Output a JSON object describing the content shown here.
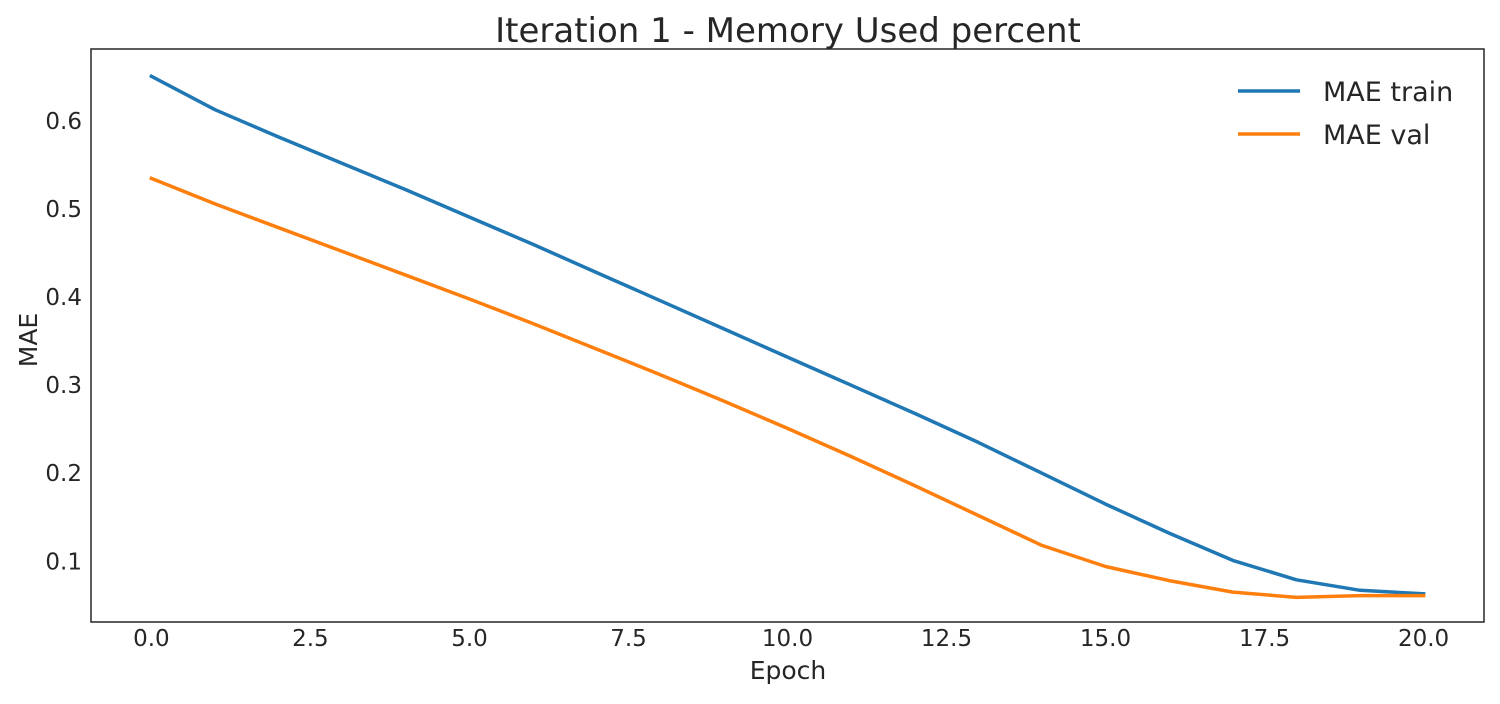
{
  "chart_data": {
    "type": "line",
    "title": "Iteration 1 - Memory Used percent",
    "xlabel": "Epoch",
    "ylabel": "MAE",
    "xlim": [
      -0.95,
      20.95
    ],
    "ylim": [
      0.031,
      0.682
    ],
    "xticks": [
      0.0,
      2.5,
      5.0,
      7.5,
      10.0,
      12.5,
      15.0,
      17.5,
      20.0
    ],
    "xtick_labels": [
      "0.0",
      "2.5",
      "5.0",
      "7.5",
      "10.0",
      "12.5",
      "15.0",
      "17.5",
      "20.0"
    ],
    "yticks": [
      0.1,
      0.2,
      0.3,
      0.4,
      0.5,
      0.6
    ],
    "ytick_labels": [
      "0.1",
      "0.2",
      "0.3",
      "0.4",
      "0.5",
      "0.6"
    ],
    "grid": false,
    "legend_position": "top-right",
    "x": [
      0,
      1,
      2,
      3,
      4,
      5,
      6,
      7,
      8,
      9,
      10,
      11,
      12,
      13,
      14,
      15,
      16,
      17,
      18,
      19,
      20
    ],
    "series": [
      {
        "name": "MAE train",
        "color": "#1f77b4",
        "values": [
          0.651,
          0.613,
          0.582,
          0.552,
          0.522,
          0.491,
          0.46,
          0.428,
          0.396,
          0.364,
          0.332,
          0.3,
          0.268,
          0.235,
          0.2,
          0.165,
          0.132,
          0.101,
          0.079,
          0.067,
          0.063
        ]
      },
      {
        "name": "MAE val",
        "color": "#ff7f0e",
        "values": [
          0.535,
          0.506,
          0.479,
          0.452,
          0.425,
          0.398,
          0.37,
          0.341,
          0.312,
          0.282,
          0.251,
          0.219,
          0.186,
          0.152,
          0.118,
          0.094,
          0.078,
          0.065,
          0.059,
          0.061,
          0.061
        ]
      }
    ]
  }
}
